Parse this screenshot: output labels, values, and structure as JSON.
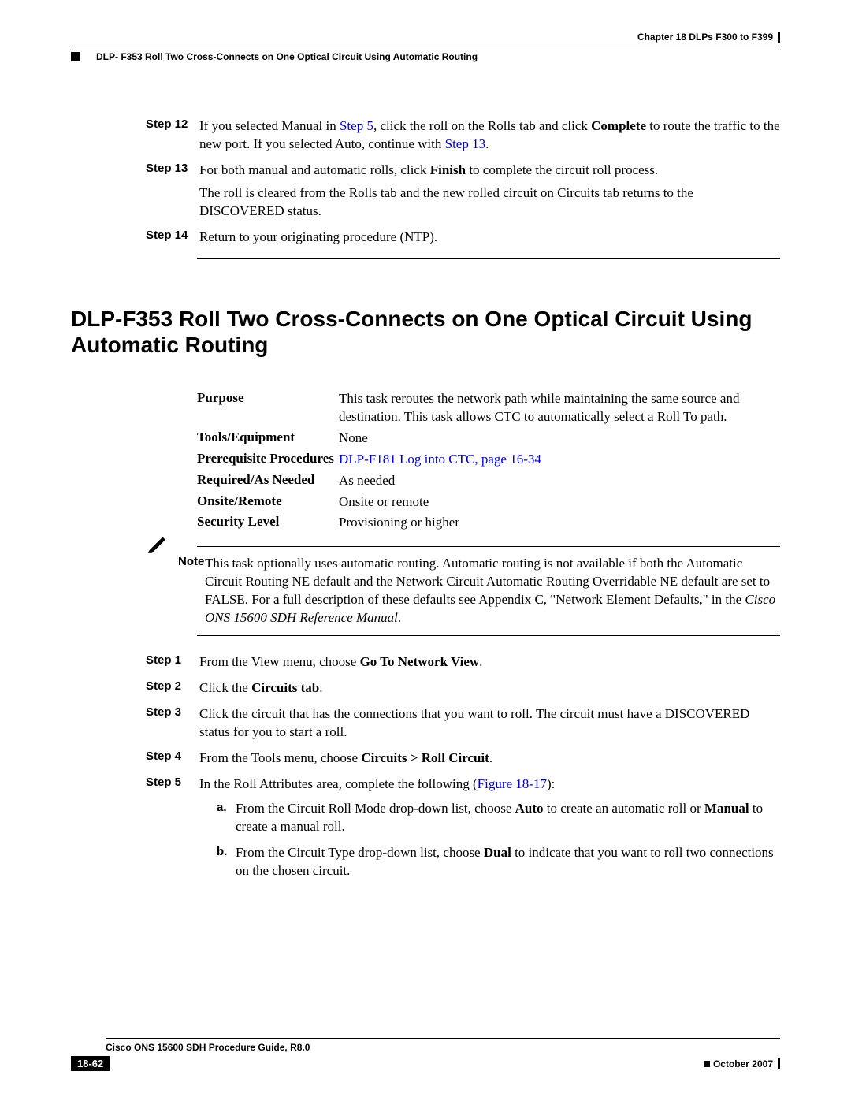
{
  "header": {
    "chapter": "Chapter 18      DLPs F300 to F399",
    "subtitle": "DLP- F353 Roll Two Cross-Connects on One Optical Circuit Using Automatic Routing"
  },
  "steps_top": [
    {
      "label": "Step 12",
      "parts": [
        {
          "t": "If you selected Manual in "
        },
        {
          "t": "Step 5",
          "link": true
        },
        {
          "t": ", click the roll on the Rolls tab and click "
        },
        {
          "t": "Complete",
          "bold": true
        },
        {
          "t": " to route the traffic to the new port. If you selected Auto, continue with "
        },
        {
          "t": "Step 13",
          "link": true
        },
        {
          "t": "."
        }
      ]
    },
    {
      "label": "Step 13",
      "parts": [
        {
          "t": "For both manual and automatic rolls, click "
        },
        {
          "t": "Finish",
          "bold": true
        },
        {
          "t": " to complete the circuit roll process."
        }
      ],
      "extra": "The roll is cleared from the Rolls tab and the new rolled circuit on Circuits tab returns to the DISCOVERED status."
    },
    {
      "label": "Step 14",
      "parts": [
        {
          "t": "Return to your originating procedure (NTP)."
        }
      ]
    }
  ],
  "section_title": "DLP-F353 Roll Two Cross-Connects on One Optical Circuit Using Automatic Routing",
  "meta": {
    "purpose_label": "Purpose",
    "purpose_val": "This task reroutes the network path while maintaining the same source and destination. This task allows CTC to automatically select a Roll To path.",
    "tools_label": "Tools/Equipment",
    "tools_val": "None",
    "prereq_label": "Prerequisite Procedures",
    "prereq_val": "DLP-F181 Log into CTC, page 16-34",
    "required_label": "Required/As Needed",
    "required_val": "As needed",
    "onsite_label": "Onsite/Remote",
    "onsite_val": "Onsite or remote",
    "security_label": "Security Level",
    "security_val": "Provisioning or higher"
  },
  "note": {
    "label": "Note",
    "text_pre": "This task optionally uses automatic routing. Automatic routing is not available if both the Automatic Circuit Routing NE default and the Network Circuit Automatic Routing Overridable NE default are set to FALSE. For a full description of these defaults see Appendix C, \"Network Element Defaults,\" in the ",
    "text_ital": "Cisco ONS 15600 SDH Reference Manual",
    "text_post": "."
  },
  "steps_main": [
    {
      "label": "Step 1",
      "parts": [
        {
          "t": "From the View menu, choose "
        },
        {
          "t": "Go To Network View",
          "bold": true
        },
        {
          "t": "."
        }
      ]
    },
    {
      "label": "Step 2",
      "parts": [
        {
          "t": "Click the "
        },
        {
          "t": "Circuits tab",
          "bold": true
        },
        {
          "t": "."
        }
      ]
    },
    {
      "label": "Step 3",
      "parts": [
        {
          "t": "Click the circuit that has the connections that you want to roll. The circuit must have a DISCOVERED status for you to start a roll."
        }
      ]
    },
    {
      "label": "Step 4",
      "parts": [
        {
          "t": "From the Tools menu, choose "
        },
        {
          "t": "Circuits > Roll Circuit",
          "bold": true
        },
        {
          "t": "."
        }
      ]
    },
    {
      "label": "Step 5",
      "parts": [
        {
          "t": "In the Roll Attributes area, complete the following ("
        },
        {
          "t": "Figure 18-17",
          "link": true
        },
        {
          "t": "):"
        }
      ],
      "sub": [
        {
          "label": "a.",
          "parts": [
            {
              "t": "From the Circuit Roll Mode drop-down list, choose "
            },
            {
              "t": "Auto",
              "bold": true
            },
            {
              "t": " to create an automatic roll or "
            },
            {
              "t": "Manual",
              "bold": true
            },
            {
              "t": " to create a manual roll."
            }
          ]
        },
        {
          "label": "b.",
          "parts": [
            {
              "t": "From the Circuit Type drop-down list, choose "
            },
            {
              "t": "Dual",
              "bold": true
            },
            {
              "t": " to indicate that you want to roll two connections on the chosen circuit."
            }
          ]
        }
      ]
    }
  ],
  "footer": {
    "title": "Cisco ONS 15600 SDH Procedure Guide, R8.0",
    "page": "18-62",
    "date": "October 2007"
  }
}
